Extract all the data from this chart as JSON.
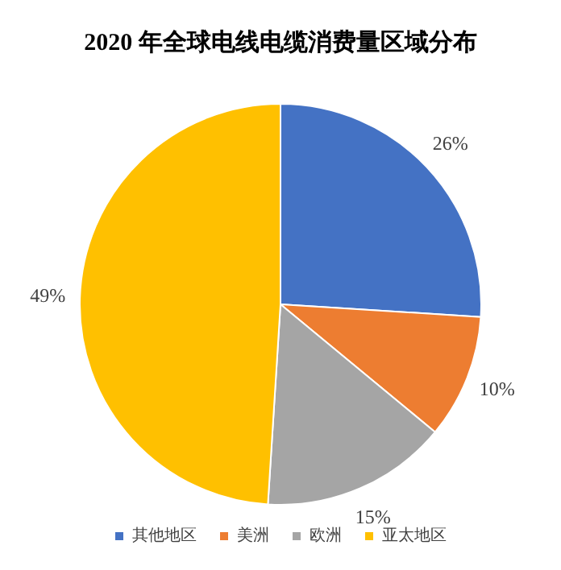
{
  "chart_data": {
    "type": "pie",
    "title": "2020 年全球电线电缆消费量区域分布",
    "categories": [
      "其他地区",
      "美洲",
      "欧洲",
      "亚太地区"
    ],
    "values": [
      26,
      10,
      15,
      49
    ],
    "colors": [
      "#4472c4",
      "#ed7d31",
      "#a5a5a5",
      "#ffc000"
    ],
    "value_labels": [
      "26%",
      "10%",
      "15%",
      "49%"
    ],
    "legend": "bottom"
  }
}
